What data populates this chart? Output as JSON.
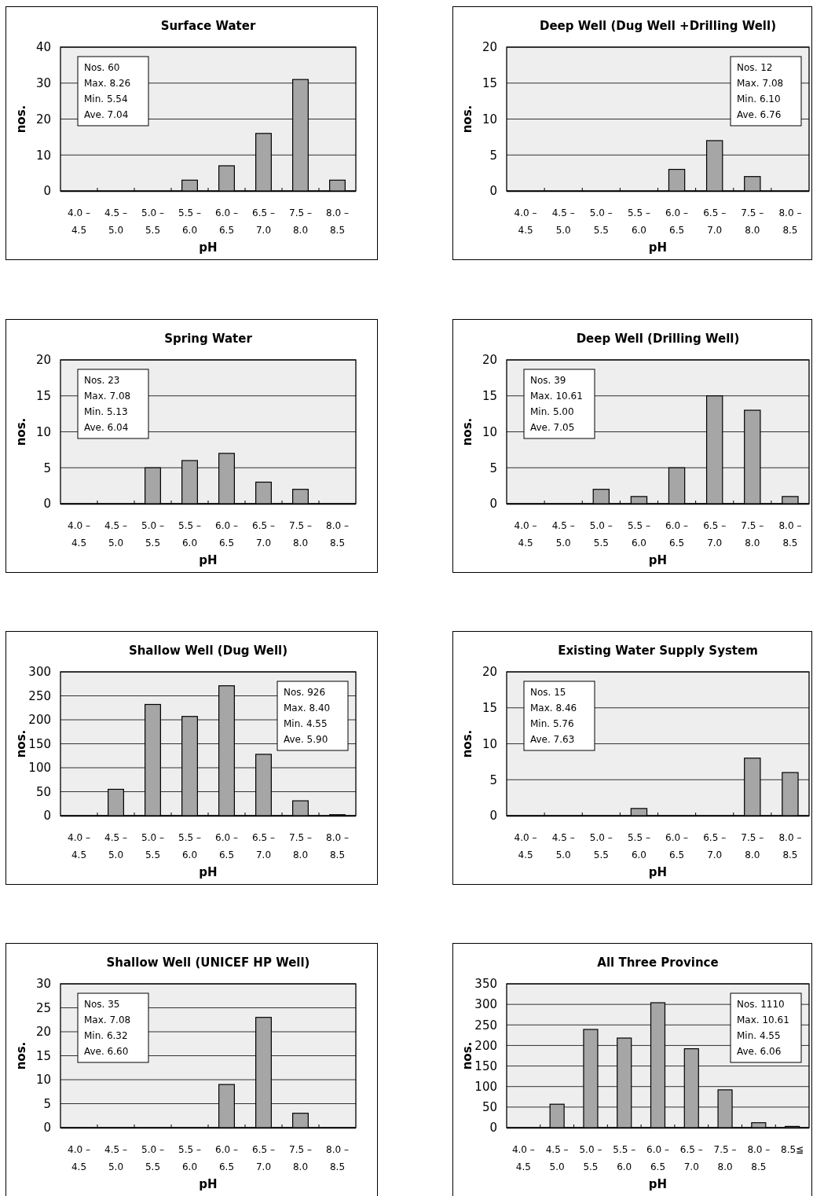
{
  "chart_data": [
    {
      "type": "bar",
      "title": "Surface Water",
      "xlabel": "pH",
      "ylabel": "nos.",
      "categories": [
        "4.0 – 4.5",
        "4.5 – 5.0",
        "5.0 – 5.5",
        "5.5 – 6.0",
        "6.0 – 6.5",
        "6.5 – 7.0",
        "7.5 – 8.0",
        "8.0 – 8.5"
      ],
      "values": [
        0,
        0,
        0,
        3,
        7,
        16,
        31,
        3
      ],
      "color": "#a6a6a6",
      "ylim": [
        0,
        40
      ],
      "yticks": [
        0,
        10,
        20,
        30,
        40
      ],
      "grid": "y",
      "annotations": [
        "Nos. 60",
        "Max. 8.26",
        "Min. 5.54",
        "Ave. 7.04"
      ]
    },
    {
      "type": "bar",
      "title": "Deep Well (Dug Well +Drilling Well)",
      "xlabel": "pH",
      "ylabel": "nos.",
      "categories": [
        "4.0 – 4.5",
        "4.5 – 5.0",
        "5.0 – 5.5",
        "5.5 – 6.0",
        "6.0 – 6.5",
        "6.5 – 7.0",
        "7.5 – 8.0",
        "8.0 – 8.5"
      ],
      "values": [
        0,
        0,
        0,
        0,
        3,
        7,
        2,
        0
      ],
      "color": "#a6a6a6",
      "ylim": [
        0,
        20
      ],
      "yticks": [
        0,
        5,
        10,
        15,
        20
      ],
      "grid": "y",
      "annotations": [
        "Nos. 12",
        "Max. 7.08",
        "Min. 6.10",
        "Ave. 6.76"
      ]
    },
    {
      "type": "bar",
      "title": "Spring Water",
      "xlabel": "pH",
      "ylabel": "nos.",
      "categories": [
        "4.0 – 4.5",
        "4.5 – 5.0",
        "5.0 – 5.5",
        "5.5 – 6.0",
        "6.0 – 6.5",
        "6.5 – 7.0",
        "7.5 – 8.0",
        "8.0 – 8.5"
      ],
      "values": [
        0,
        0,
        5,
        6,
        7,
        3,
        2,
        0
      ],
      "color": "#a6a6a6",
      "ylim": [
        0,
        20
      ],
      "yticks": [
        0,
        5,
        10,
        15,
        20
      ],
      "grid": "y",
      "annotations": [
        "Nos. 23",
        "Max. 7.08",
        "Min. 5.13",
        "Ave. 6.04"
      ]
    },
    {
      "type": "bar",
      "title": "Deep Well (Drilling Well)",
      "xlabel": "pH",
      "ylabel": "nos.",
      "categories": [
        "4.0 – 4.5",
        "4.5 – 5.0",
        "5.0 – 5.5",
        "5.5 – 6.0",
        "6.0 – 6.5",
        "6.5 – 7.0",
        "7.5 – 8.0",
        "8.0 – 8.5"
      ],
      "values": [
        0,
        0,
        2,
        1,
        5,
        15,
        13,
        1
      ],
      "color": "#a6a6a6",
      "ylim": [
        0,
        20
      ],
      "yticks": [
        0,
        5,
        10,
        15,
        20
      ],
      "grid": "y",
      "annotations": [
        "Nos. 39",
        "Max. 10.61",
        "Min. 5.00",
        "Ave. 7.05"
      ]
    },
    {
      "type": "bar",
      "title": "Shallow Well (Dug Well)",
      "xlabel": "pH",
      "ylabel": "nos.",
      "categories": [
        "4.0 – 4.5",
        "4.5 – 5.0",
        "5.0 – 5.5",
        "5.5 – 6.0",
        "6.0 – 6.5",
        "6.5 – 7.0",
        "7.5 – 8.0",
        "8.0 – 8.5"
      ],
      "values": [
        0,
        55,
        232,
        207,
        271,
        128,
        31,
        2
      ],
      "color": "#a6a6a6",
      "ylim": [
        0,
        300
      ],
      "yticks": [
        0,
        50,
        100,
        150,
        200,
        250,
        300
      ],
      "grid": "y",
      "annotations": [
        "Nos. 926",
        "Max. 8.40",
        "Min. 4.55",
        "Ave. 5.90"
      ]
    },
    {
      "type": "bar",
      "title": "Existing Water Supply System",
      "xlabel": "pH",
      "ylabel": "nos.",
      "categories": [
        "4.0 – 4.5",
        "4.5 – 5.0",
        "5.0 – 5.5",
        "5.5 – 6.0",
        "6.0 – 6.5",
        "6.5 – 7.0",
        "7.5 – 8.0",
        "8.0 – 8.5"
      ],
      "values": [
        0,
        0,
        0,
        1,
        0,
        0,
        8,
        6
      ],
      "color": "#a6a6a6",
      "ylim": [
        0,
        20
      ],
      "yticks": [
        0,
        5,
        10,
        15,
        20
      ],
      "grid": "y",
      "annotations": [
        "Nos. 15",
        "Max. 8.46",
        "Min. 5.76",
        "Ave. 7.63"
      ]
    },
    {
      "type": "bar",
      "title": "Shallow Well (UNICEF HP Well)",
      "xlabel": "pH",
      "ylabel": "nos.",
      "categories": [
        "4.0 – 4.5",
        "4.5 – 5.0",
        "5.0 – 5.5",
        "5.5 – 6.0",
        "6.0 – 6.5",
        "6.5 – 7.0",
        "7.5 – 8.0",
        "8.0 – 8.5"
      ],
      "values": [
        0,
        0,
        0,
        0,
        9,
        23,
        3,
        0
      ],
      "color": "#a6a6a6",
      "ylim": [
        0,
        30
      ],
      "yticks": [
        0,
        5,
        10,
        15,
        20,
        25,
        30
      ],
      "grid": "y",
      "annotations": [
        "Nos. 35",
        "Max. 7.08",
        "Min. 6.32",
        "Ave. 6.60"
      ]
    },
    {
      "type": "bar",
      "title": "All Three Province",
      "xlabel": "pH",
      "ylabel": "nos.",
      "categories": [
        "4.0 – 4.5",
        "4.5 – 5.0",
        "5.0 – 5.5",
        "5.5 – 6.0",
        "6.0 – 6.5",
        "6.5 – 7.0",
        "7.5 – 8.0",
        "8.0 – 8.5",
        "8.5≦"
      ],
      "values": [
        0,
        57,
        239,
        218,
        304,
        192,
        92,
        12,
        3
      ],
      "color": "#a6a6a6",
      "ylim": [
        0,
        350
      ],
      "yticks": [
        0,
        50,
        100,
        150,
        200,
        250,
        300,
        350
      ],
      "grid": "y",
      "annotations": [
        "Nos. 1110",
        "Max. 10.61",
        "Min. 4.55",
        "Ave. 6.06"
      ]
    }
  ]
}
